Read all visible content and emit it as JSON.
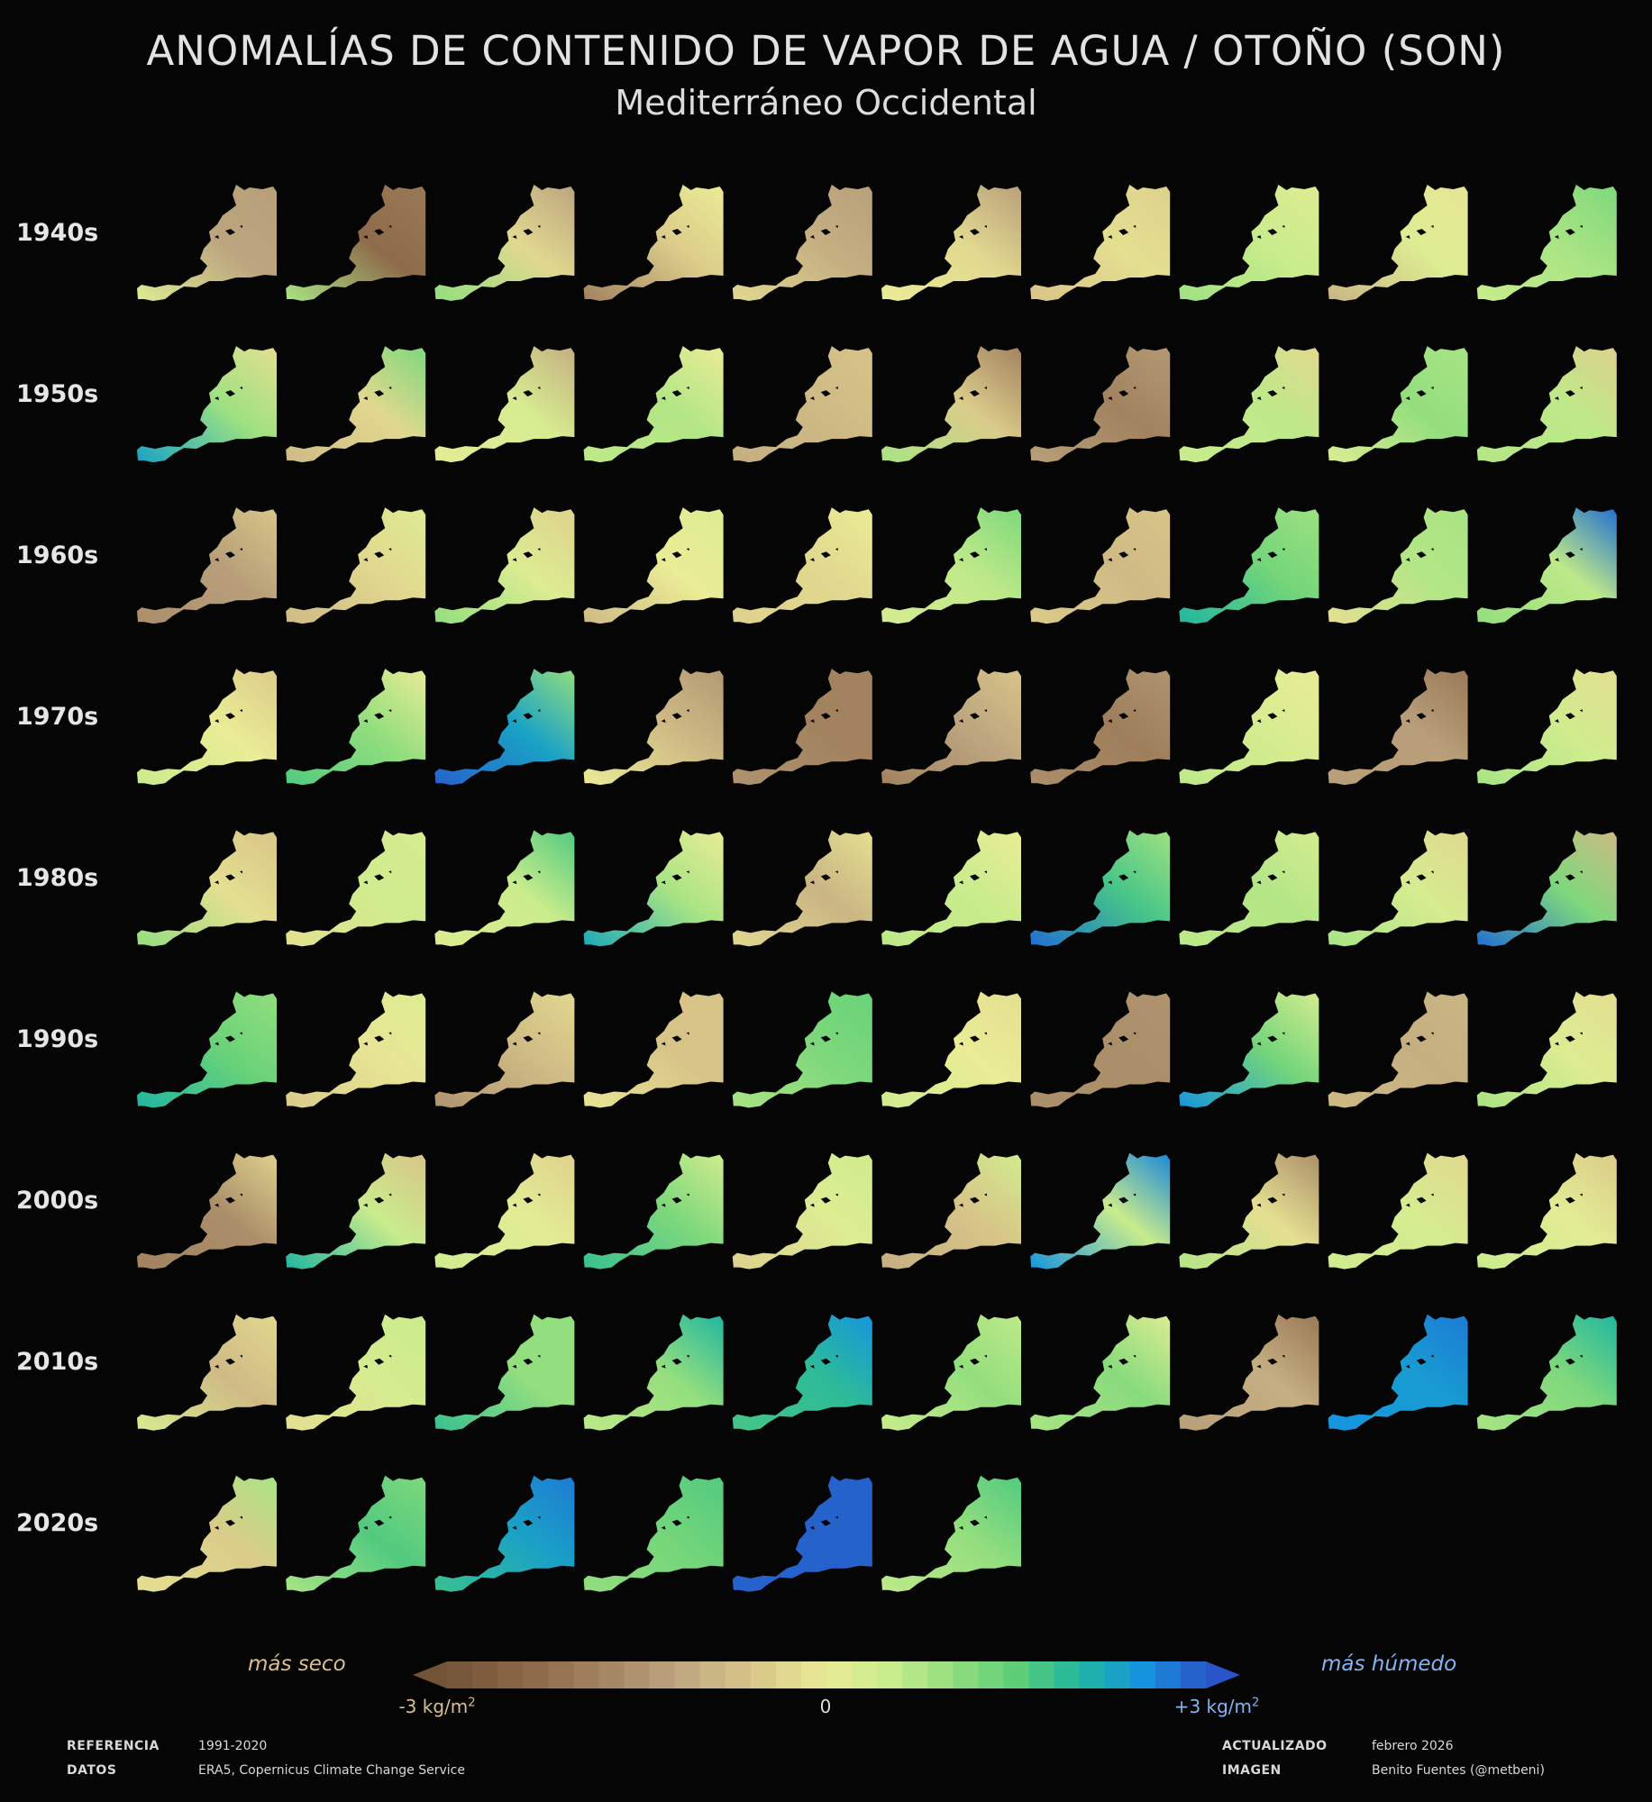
{
  "header": {
    "title": "ANOMALÍAS DE CONTENIDO DE VAPOR DE AGUA / OTOÑO (SON)",
    "subtitle": "Mediterráneo Occidental"
  },
  "chart_data": {
    "type": "heatmap",
    "title": "ANOMALÍAS DE CONTENIDO DE VAPOR DE AGUA / OTOÑO (SON)",
    "subtitle": "Mediterráneo Occidental",
    "unit": "kg/m2",
    "scale_min": -3,
    "scale_max": 3,
    "rows": [
      "1940s",
      "1950s",
      "1960s",
      "1970s",
      "1980s",
      "1990s",
      "2000s",
      "2010s",
      "2020s"
    ],
    "years_per_row": 10,
    "maps": [
      [
        {
          "main": -1.2,
          "sw": 0.2,
          "ne": -1.3
        },
        {
          "main": -2.3,
          "sw": 0.8,
          "ne": -2.0
        },
        {
          "main": -0.3,
          "sw": 1.0,
          "ne": -1.2
        },
        {
          "main": -0.5,
          "sw": -1.8,
          "ne": 0.0
        },
        {
          "main": -1.0,
          "sw": -0.3,
          "ne": -1.3
        },
        {
          "main": -0.3,
          "sw": 0.0,
          "ne": -1.3
        },
        {
          "main": -0.2,
          "sw": -0.6,
          "ne": -0.4
        },
        {
          "main": 0.5,
          "sw": 0.9,
          "ne": 0.2
        },
        {
          "main": 0.2,
          "sw": -0.9,
          "ne": -0.1
        },
        {
          "main": 0.8,
          "sw": 0.5,
          "ne": 1.2
        }
      ],
      [
        {
          "main": 0.9,
          "sw": 2.3,
          "ne": -0.2
        },
        {
          "main": -0.3,
          "sw": -0.8,
          "ne": 1.2
        },
        {
          "main": 0.3,
          "sw": 0.1,
          "ne": -1.0
        },
        {
          "main": 0.7,
          "sw": 0.6,
          "ne": 0.0
        },
        {
          "main": -0.8,
          "sw": -1.0,
          "ne": -0.6
        },
        {
          "main": -0.5,
          "sw": 0.8,
          "ne": -1.8
        },
        {
          "main": -1.8,
          "sw": -1.3,
          "ne": -1.4
        },
        {
          "main": 0.6,
          "sw": 0.5,
          "ne": -0.3
        },
        {
          "main": 1.0,
          "sw": 0.2,
          "ne": 0.8
        },
        {
          "main": 0.6,
          "sw": 0.7,
          "ne": -0.4
        }
      ],
      [
        {
          "main": -1.3,
          "sw": -1.6,
          "ne": -0.6
        },
        {
          "main": -0.3,
          "sw": -0.8,
          "ne": 0.2
        },
        {
          "main": 0.2,
          "sw": 1.0,
          "ne": -0.4
        },
        {
          "main": 0.0,
          "sw": -0.8,
          "ne": 0.2
        },
        {
          "main": -0.3,
          "sw": -0.4,
          "ne": 0.0
        },
        {
          "main": 0.6,
          "sw": 0.3,
          "ne": 1.2
        },
        {
          "main": -0.8,
          "sw": -0.5,
          "ne": -0.6
        },
        {
          "main": 1.3,
          "sw": 2.0,
          "ne": 0.9
        },
        {
          "main": 0.7,
          "sw": -0.2,
          "ne": 0.8
        },
        {
          "main": 0.6,
          "sw": 1.0,
          "ne": 2.8
        }
      ],
      [
        {
          "main": 0.0,
          "sw": 0.5,
          "ne": -0.5
        },
        {
          "main": 1.0,
          "sw": 1.6,
          "ne": 0.0
        },
        {
          "main": 2.3,
          "sw": 2.9,
          "ne": 1.0
        },
        {
          "main": -0.8,
          "sw": 0.0,
          "ne": -1.4
        },
        {
          "main": -1.8,
          "sw": -1.5,
          "ne": -1.8
        },
        {
          "main": -1.2,
          "sw": -1.8,
          "ne": -0.6
        },
        {
          "main": -1.9,
          "sw": -1.6,
          "ne": -1.5
        },
        {
          "main": 0.3,
          "sw": 0.6,
          "ne": 0.0
        },
        {
          "main": -1.3,
          "sw": -1.3,
          "ne": -2.0
        },
        {
          "main": 0.4,
          "sw": 0.8,
          "ne": -0.2
        }
      ],
      [
        {
          "main": -0.2,
          "sw": 1.0,
          "ne": -0.6
        },
        {
          "main": 0.4,
          "sw": -0.2,
          "ne": 0.3
        },
        {
          "main": 0.5,
          "sw": 0.2,
          "ne": 1.6
        },
        {
          "main": 0.8,
          "sw": 2.2,
          "ne": 0.0
        },
        {
          "main": -0.9,
          "sw": -0.3,
          "ne": -0.2
        },
        {
          "main": 0.5,
          "sw": 0.6,
          "ne": 0.0
        },
        {
          "main": 1.7,
          "sw": 2.8,
          "ne": 0.9
        },
        {
          "main": 0.7,
          "sw": 0.6,
          "ne": 0.3
        },
        {
          "main": 0.3,
          "sw": 0.8,
          "ne": -0.3
        },
        {
          "main": 1.2,
          "sw": 2.8,
          "ne": -0.8
        }
      ],
      [
        {
          "main": 1.4,
          "sw": 2.0,
          "ne": 1.0
        },
        {
          "main": -0.1,
          "sw": -0.5,
          "ne": 0.2
        },
        {
          "main": -0.8,
          "sw": -1.5,
          "ne": -0.3
        },
        {
          "main": -0.6,
          "sw": -0.1,
          "ne": -0.6
        },
        {
          "main": 1.2,
          "sw": 0.8,
          "ne": 1.4
        },
        {
          "main": 0.0,
          "sw": 0.4,
          "ne": -0.2
        },
        {
          "main": -1.6,
          "sw": -1.6,
          "ne": -1.5
        },
        {
          "main": 1.3,
          "sw": 2.5,
          "ne": 0.3
        },
        {
          "main": -1.0,
          "sw": -0.8,
          "ne": -0.9
        },
        {
          "main": 0.2,
          "sw": 0.8,
          "ne": -0.2
        }
      ],
      [
        {
          "main": -1.6,
          "sw": -1.8,
          "ne": -0.4
        },
        {
          "main": 0.5,
          "sw": 2.0,
          "ne": -0.6
        },
        {
          "main": 0.1,
          "sw": 0.4,
          "ne": -0.4
        },
        {
          "main": 1.2,
          "sw": 1.8,
          "ne": 0.4
        },
        {
          "main": 0.2,
          "sw": -0.4,
          "ne": 0.4
        },
        {
          "main": -0.6,
          "sw": -1.0,
          "ne": 0.4
        },
        {
          "main": 0.5,
          "sw": 2.5,
          "ne": 2.6
        },
        {
          "main": -0.2,
          "sw": 0.7,
          "ne": -1.6
        },
        {
          "main": 0.3,
          "sw": 0.4,
          "ne": -0.3
        },
        {
          "main": 0.1,
          "sw": 0.5,
          "ne": -0.5
        }
      ],
      [
        {
          "main": -0.8,
          "sw": 0.3,
          "ne": -0.3
        },
        {
          "main": 0.3,
          "sw": -0.2,
          "ne": 0.5
        },
        {
          "main": 1.0,
          "sw": 1.8,
          "ne": 1.0
        },
        {
          "main": 1.0,
          "sw": 0.6,
          "ne": 2.0
        },
        {
          "main": 1.9,
          "sw": 1.7,
          "ne": 2.5
        },
        {
          "main": 1.0,
          "sw": 0.5,
          "ne": 0.6
        },
        {
          "main": 1.1,
          "sw": 0.8,
          "ne": 0.2
        },
        {
          "main": -1.0,
          "sw": -1.3,
          "ne": -2.0
        },
        {
          "main": 2.4,
          "sw": 2.5,
          "ne": 2.7
        },
        {
          "main": 1.2,
          "sw": 0.8,
          "ne": 2.0
        }
      ],
      [
        {
          "main": -0.5,
          "sw": -0.2,
          "ne": 0.8
        },
        {
          "main": 1.6,
          "sw": 0.8,
          "ne": 1.2
        },
        {
          "main": 2.3,
          "sw": 1.8,
          "ne": 2.7
        },
        {
          "main": 1.3,
          "sw": 1.0,
          "ne": 1.6
        },
        {
          "main": 2.9,
          "sw": 2.9,
          "ne": 2.9
        },
        {
          "main": 1.0,
          "sw": 0.6,
          "ne": 1.6
        }
      ]
    ],
    "legend": {
      "dry_label": "más seco",
      "wet_label": "más húmedo",
      "min_label": "-3 kg/m",
      "max_label": "+3 kg/m",
      "unit_exp": "2",
      "zero_label": "0"
    }
  },
  "colors": {
    "dry": "#7a5a3c",
    "neutral": "#eaec96",
    "wet": "#2a55c8",
    "background": "#050505"
  },
  "footer": {
    "ref_label": "REFERENCIA",
    "ref_value": "1991-2020",
    "data_label": "DATOS",
    "data_value": "ERA5, Copernicus Climate Change Service",
    "updated_label": "ACTUALIZADO",
    "updated_value": "febrero 2026",
    "image_label": "IMAGEN",
    "image_value": "Benito Fuentes (@metbeni)"
  }
}
